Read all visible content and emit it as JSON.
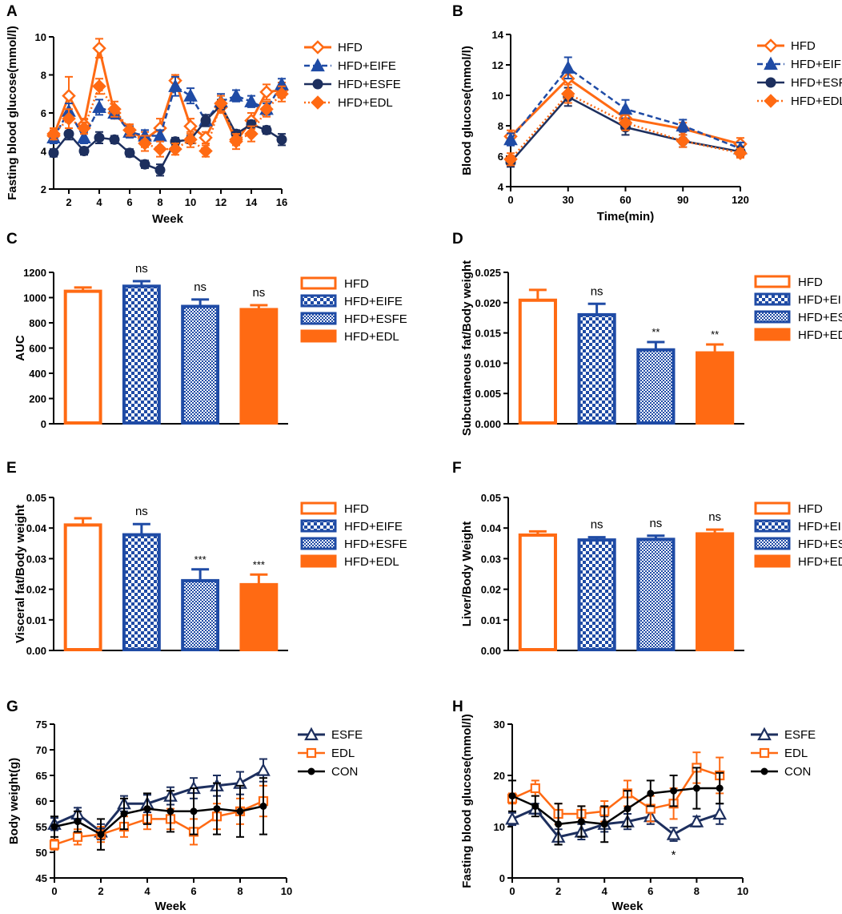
{
  "colors": {
    "hfd": "#ff6a13",
    "eife": "#1f4ba5",
    "esfe": "#1d2f5e",
    "edl": "#ff6a13",
    "con": "#000000"
  },
  "chart_data": [
    {
      "panel": "A",
      "type": "line",
      "title": "",
      "xlabel": "Week",
      "ylabel": "Fasting blood glucose(mmol/l)",
      "xlim": [
        1,
        16
      ],
      "ylim": [
        2,
        10
      ],
      "xticks": [
        2,
        4,
        6,
        8,
        10,
        12,
        14,
        16
      ],
      "yticks": [
        2,
        4,
        6,
        8,
        10
      ],
      "x": [
        1,
        2,
        3,
        4,
        5,
        6,
        7,
        8,
        9,
        10,
        11,
        12,
        13,
        14,
        15,
        16
      ],
      "series": [
        {
          "name": "HFD",
          "values": [
            4.8,
            6.9,
            5.4,
            9.4,
            6.0,
            5.1,
            4.6,
            5.2,
            7.7,
            5.3,
            4.7,
            6.3,
            4.5,
            5.6,
            7.1,
            7.2
          ],
          "errors": [
            0.3,
            1.0,
            0.3,
            0.5,
            0.3,
            0.3,
            0.4,
            0.5,
            0.3,
            0.4,
            0.3,
            0.3,
            0.4,
            0.4,
            0.4,
            0.4
          ]
        },
        {
          "name": "HFD+EIFE",
          "values": [
            4.7,
            6.1,
            4.7,
            6.3,
            6.0,
            5.0,
            4.8,
            4.8,
            7.4,
            6.9,
            5.6,
            6.6,
            6.9,
            6.6,
            6.2,
            7.5
          ],
          "errors": [
            0.3,
            0.4,
            0.3,
            0.4,
            0.3,
            0.3,
            0.3,
            0.3,
            0.5,
            0.4,
            0.3,
            0.4,
            0.3,
            0.3,
            0.3,
            0.3
          ]
        },
        {
          "name": "HFD+ESFE",
          "values": [
            3.9,
            4.9,
            4.0,
            4.7,
            4.6,
            3.9,
            3.3,
            3.0,
            4.5,
            4.6,
            5.6,
            6.4,
            4.9,
            5.4,
            5.1,
            4.6
          ],
          "errors": [
            0.2,
            0.3,
            0.2,
            0.3,
            0.2,
            0.2,
            0.2,
            0.3,
            0.2,
            0.2,
            0.3,
            0.3,
            0.2,
            0.2,
            0.2,
            0.3
          ]
        },
        {
          "name": "HFD+EDL",
          "values": [
            4.9,
            5.7,
            5.2,
            7.4,
            6.2,
            5.1,
            4.4,
            4.1,
            4.1,
            4.6,
            4.0,
            6.5,
            4.6,
            4.9,
            6.2,
            7.0
          ],
          "errors": [
            0.3,
            0.5,
            0.3,
            0.4,
            0.4,
            0.3,
            0.4,
            0.4,
            0.3,
            0.4,
            0.3,
            0.4,
            0.3,
            0.4,
            0.4,
            0.4
          ]
        }
      ]
    },
    {
      "panel": "B",
      "type": "line",
      "title": "",
      "xlabel": "Time(min)",
      "ylabel": "Blood glucose(mmol/l)",
      "xlim": [
        0,
        120
      ],
      "ylim": [
        4,
        14
      ],
      "xticks": [
        0,
        30,
        60,
        90,
        120
      ],
      "yticks": [
        4,
        6,
        8,
        10,
        12,
        14
      ],
      "x": [
        0,
        30,
        60,
        90,
        120
      ],
      "series": [
        {
          "name": "HFD",
          "values": [
            7.3,
            11.1,
            8.5,
            7.8,
            6.8
          ],
          "errors": [
            0.4,
            0.6,
            0.5,
            0.4,
            0.4
          ]
        },
        {
          "name": "HFD+EIFE",
          "values": [
            7.1,
            11.8,
            9.1,
            8.0,
            6.5
          ],
          "errors": [
            0.4,
            0.7,
            0.6,
            0.4,
            0.4
          ]
        },
        {
          "name": "HFD+ESFE",
          "values": [
            5.6,
            9.9,
            7.9,
            7.0,
            6.3
          ],
          "errors": [
            0.3,
            0.6,
            0.5,
            0.4,
            0.3
          ]
        },
        {
          "name": "HFD+EDL",
          "values": [
            5.8,
            10.1,
            8.2,
            7.0,
            6.2
          ],
          "errors": [
            0.4,
            0.6,
            0.5,
            0.4,
            0.3
          ]
        }
      ]
    },
    {
      "panel": "C",
      "type": "bar",
      "title": "",
      "xlabel": "",
      "ylabel": "AUC",
      "ylim": [
        0,
        1200
      ],
      "yticks": [
        0,
        200,
        400,
        600,
        800,
        1000,
        1200
      ],
      "categories": [
        "HFD",
        "HFD+EIFE",
        "HFD+ESFE",
        "HFD+EDL"
      ],
      "values": [
        1050,
        1090,
        930,
        905
      ],
      "errors": [
        30,
        40,
        55,
        35
      ],
      "annotations": [
        "",
        "ns",
        "ns",
        "ns"
      ]
    },
    {
      "panel": "D",
      "type": "bar",
      "title": "",
      "xlabel": "",
      "ylabel": "Subcutaneous fat/Body weight",
      "ylim": [
        0,
        0.025
      ],
      "yticks": [
        "0.000",
        "0.005",
        "0.010",
        "0.015",
        "0.020",
        "0.025"
      ],
      "categories": [
        "HFD",
        "HFD+EIFE",
        "HFD+ESFE",
        "HFD+EDL"
      ],
      "values": [
        0.0204,
        0.018,
        0.0122,
        0.0117
      ],
      "errors": [
        0.0017,
        0.0018,
        0.0013,
        0.0014
      ],
      "annotations": [
        "",
        "ns",
        "**",
        "**"
      ]
    },
    {
      "panel": "E",
      "type": "bar",
      "title": "",
      "xlabel": "",
      "ylabel": "Visceral fat/Body weight",
      "ylim": [
        0,
        0.05
      ],
      "yticks": [
        "0.00",
        "0.01",
        "0.02",
        "0.03",
        "0.04",
        "0.05"
      ],
      "categories": [
        "HFD",
        "HFD+EIFE",
        "HFD+ESFE",
        "HFD+EDL"
      ],
      "values": [
        0.041,
        0.0378,
        0.0228,
        0.0215
      ],
      "errors": [
        0.0022,
        0.0035,
        0.0037,
        0.0033
      ],
      "annotations": [
        "",
        "ns",
        "***",
        "***"
      ]
    },
    {
      "panel": "F",
      "type": "bar",
      "title": "",
      "xlabel": "",
      "ylabel": "Liver/Body Weight",
      "ylim": [
        0,
        0.05
      ],
      "yticks": [
        "0.00",
        "0.01",
        "0.02",
        "0.03",
        "0.04",
        "0.05"
      ],
      "categories": [
        "HFD",
        "HFD+EIFE",
        "HFD+ESFE",
        "HFD+EDL"
      ],
      "values": [
        0.0377,
        0.0361,
        0.0363,
        0.0381
      ],
      "errors": [
        0.0012,
        0.0009,
        0.0012,
        0.0014
      ],
      "annotations": [
        "",
        "ns",
        "ns",
        "ns"
      ]
    },
    {
      "panel": "G",
      "type": "line",
      "title": "",
      "xlabel": "Week",
      "ylabel": "Body weight(g)",
      "xlim": [
        0,
        10
      ],
      "ylim": [
        45,
        75
      ],
      "xticks": [
        0,
        2,
        4,
        6,
        8,
        10
      ],
      "yticks": [
        45,
        50,
        55,
        60,
        65,
        70,
        75
      ],
      "x": [
        0,
        1,
        2,
        3,
        4,
        5,
        6,
        7,
        8,
        9
      ],
      "series": [
        {
          "name": "ESFE",
          "values": [
            55.5,
            57.5,
            54.0,
            59.5,
            59.5,
            61.0,
            62.5,
            63.0,
            63.5,
            66.0
          ],
          "errors": [
            1.2,
            1.2,
            1.5,
            1.5,
            1.7,
            1.7,
            2.0,
            2.0,
            2.2,
            2.2
          ]
        },
        {
          "name": "EDL",
          "values": [
            51.5,
            53.0,
            53.5,
            55.0,
            56.5,
            56.5,
            54.0,
            57.0,
            58.0,
            60.0
          ],
          "errors": [
            1.0,
            1.5,
            1.5,
            2.0,
            2.0,
            2.0,
            2.5,
            2.5,
            2.5,
            3.0
          ]
        },
        {
          "name": "CON",
          "values": [
            55.0,
            56.0,
            53.5,
            57.5,
            58.5,
            58.0,
            58.0,
            58.5,
            58.0,
            59.0
          ],
          "errors": [
            2.0,
            2.0,
            3.0,
            3.0,
            3.0,
            4.0,
            4.5,
            5.0,
            5.0,
            5.5
          ]
        }
      ]
    },
    {
      "panel": "H",
      "type": "line",
      "title": "",
      "xlabel": "Week",
      "ylabel": "Fasting blood glucose(mmol/l)",
      "xlim": [
        0,
        10
      ],
      "ylim": [
        0,
        30
      ],
      "xticks": [
        0,
        2,
        4,
        6,
        8,
        10
      ],
      "yticks": [
        0,
        10,
        20,
        30
      ],
      "x": [
        0,
        1,
        2,
        3,
        4,
        5,
        6,
        7,
        8,
        9
      ],
      "series": [
        {
          "name": "ESFE",
          "values": [
            11.5,
            13.5,
            8.0,
            9.0,
            10.5,
            11.0,
            12.0,
            8.5,
            11.0,
            12.5
          ],
          "errors": [
            1.2,
            1.0,
            1.5,
            1.5,
            1.5,
            1.5,
            1.5,
            1.3,
            1.0,
            2.0
          ]
        },
        {
          "name": "EDL",
          "values": [
            15.5,
            17.5,
            12.5,
            12.5,
            13.0,
            16.5,
            13.5,
            14.5,
            21.5,
            20.0
          ],
          "errors": [
            1.0,
            1.5,
            2.0,
            1.5,
            2.0,
            2.5,
            2.5,
            3.0,
            3.0,
            3.5
          ]
        },
        {
          "name": "CON",
          "values": [
            16.0,
            14.0,
            10.5,
            11.0,
            10.5,
            13.5,
            16.5,
            17.0,
            17.5,
            17.5
          ],
          "errors": [
            3.0,
            2.0,
            4.0,
            3.0,
            3.5,
            3.5,
            2.5,
            3.0,
            4.0,
            3.0
          ]
        }
      ],
      "annotations": [
        {
          "x": 7,
          "text": "*"
        }
      ]
    }
  ]
}
